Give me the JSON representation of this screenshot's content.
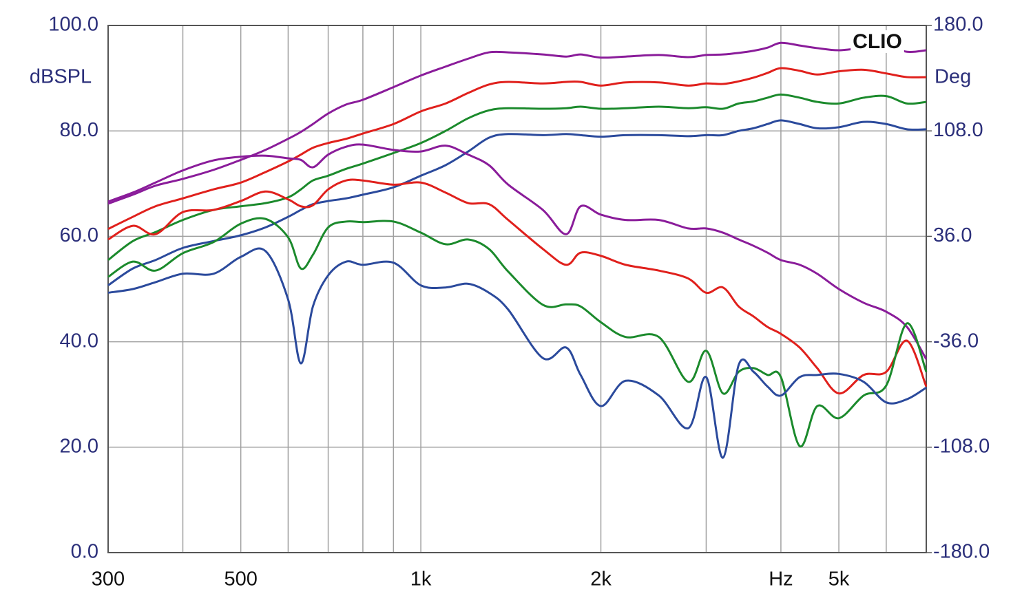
{
  "chart_data": {
    "type": "line",
    "ylabel": "dBSPL",
    "y2label": "Deg",
    "annotation": "CLIO",
    "xscale": "log",
    "grid": true,
    "xlim": [
      300,
      7000
    ],
    "ylim": [
      0,
      100
    ],
    "y2lim": [
      -180,
      180
    ],
    "xticks": [
      300,
      500,
      {
        "value": 1000,
        "label": "1k"
      },
      {
        "value": 2000,
        "label": "2k"
      },
      {
        "value": 4000,
        "label": "Hz"
      },
      {
        "value": 5000,
        "label": "5k"
      }
    ],
    "xminorticks": [
      400,
      600,
      700,
      800,
      900,
      3000,
      6000,
      7000
    ],
    "yticks": [
      {
        "value": 0,
        "label": "0.0"
      },
      {
        "value": 20,
        "label": "20.0"
      },
      {
        "value": 40,
        "label": "40.0"
      },
      {
        "value": 60,
        "label": "60.0"
      },
      {
        "value": 80,
        "label": "80.0"
      },
      {
        "value": 100,
        "label": "100.0"
      }
    ],
    "y2ticks": [
      {
        "value": -180,
        "label": "-180.0"
      },
      {
        "value": -108,
        "label": "-108.0"
      },
      {
        "value": -36,
        "label": "-36.0"
      },
      {
        "value": 36,
        "label": "36.0"
      },
      {
        "value": 108,
        "label": "108.0"
      },
      {
        "value": 180,
        "label": "180.0"
      }
    ],
    "x": [
      300,
      330,
      360,
      400,
      450,
      500,
      550,
      600,
      630,
      660,
      700,
      750,
      800,
      900,
      1000,
      1100,
      1200,
      1300,
      1400,
      1600,
      1750,
      1850,
      2000,
      2200,
      2500,
      2800,
      3000,
      3200,
      3400,
      3600,
      3800,
      4000,
      4300,
      4600,
      5000,
      5500,
      6000,
      6500,
      7000
    ],
    "series": [
      {
        "color": "#8a1c9a",
        "values": [
          66.2,
          67.9,
          69.6,
          70.9,
          72.6,
          74.5,
          76.4,
          78.5,
          79.8,
          81.3,
          83.3,
          85.0,
          85.9,
          88.3,
          90.5,
          92.2,
          93.7,
          94.9,
          94.9,
          94.5,
          94.1,
          94.5,
          93.9,
          94.1,
          94.4,
          94.0,
          94.4,
          94.5,
          94.8,
          95.2,
          95.8,
          96.7,
          96.2,
          95.7,
          95.3,
          95.8,
          96.2,
          95.0,
          95.3
        ]
      },
      {
        "color": "#e0201c",
        "values": [
          61.4,
          63.7,
          65.7,
          67.2,
          68.9,
          70.2,
          72.2,
          74.2,
          75.5,
          76.8,
          77.7,
          78.5,
          79.5,
          81.3,
          83.7,
          85.2,
          87.2,
          88.8,
          89.3,
          89.0,
          89.3,
          89.3,
          88.6,
          89.2,
          89.2,
          88.6,
          89.0,
          88.9,
          89.4,
          90.1,
          91.0,
          91.9,
          91.4,
          90.7,
          91.3,
          91.6,
          90.9,
          90.2,
          90.2
        ]
      },
      {
        "color": "#1b8a2c",
        "values": [
          55.5,
          59.1,
          60.8,
          63.1,
          65.0,
          65.7,
          66.3,
          67.4,
          68.9,
          70.6,
          71.5,
          72.8,
          73.8,
          75.8,
          77.7,
          80.0,
          82.4,
          83.9,
          84.3,
          84.2,
          84.3,
          84.6,
          84.2,
          84.3,
          84.6,
          84.3,
          84.5,
          84.2,
          85.2,
          85.6,
          86.3,
          86.9,
          86.3,
          85.5,
          85.2,
          86.3,
          86.6,
          85.2,
          85.5
        ]
      },
      {
        "color": "#2b4a9c",
        "values": [
          50.7,
          53.9,
          55.5,
          57.8,
          59.1,
          60.2,
          61.7,
          63.7,
          65.0,
          66.1,
          66.7,
          67.2,
          67.9,
          69.3,
          71.5,
          73.5,
          76.1,
          78.7,
          79.4,
          79.2,
          79.4,
          79.2,
          78.9,
          79.2,
          79.2,
          79.0,
          79.2,
          79.2,
          80.0,
          80.5,
          81.3,
          82.0,
          81.3,
          80.5,
          80.7,
          81.7,
          81.3,
          80.3,
          80.3
        ]
      },
      {
        "color": "#8a1c9a",
        "values": [
          66.6,
          68.3,
          70.2,
          72.5,
          74.4,
          75.1,
          75.3,
          74.8,
          74.5,
          73.1,
          75.5,
          77.0,
          77.4,
          76.4,
          76.1,
          77.2,
          75.5,
          73.5,
          69.8,
          65.0,
          60.4,
          65.7,
          64.1,
          63.1,
          63.1,
          61.5,
          61.5,
          60.7,
          59.4,
          58.2,
          56.9,
          55.5,
          54.6,
          52.9,
          50.0,
          47.4,
          45.7,
          42.8,
          36.7
        ]
      },
      {
        "color": "#e0201c",
        "values": [
          59.4,
          62.0,
          60.4,
          64.6,
          65.0,
          66.7,
          68.5,
          67.0,
          65.7,
          65.9,
          68.9,
          70.6,
          70.6,
          69.8,
          70.2,
          68.3,
          66.3,
          66.1,
          63.1,
          57.6,
          54.6,
          56.9,
          56.3,
          54.6,
          53.5,
          52.0,
          49.3,
          50.3,
          46.7,
          44.8,
          42.8,
          41.5,
          38.9,
          35.0,
          30.2,
          33.7,
          34.3,
          40.2,
          31.5
        ]
      },
      {
        "color": "#1b8a2c",
        "values": [
          52.3,
          55.2,
          53.5,
          56.8,
          58.9,
          62.4,
          63.3,
          59.8,
          53.9,
          56.5,
          61.7,
          62.8,
          62.7,
          62.8,
          60.7,
          58.5,
          59.4,
          57.6,
          53.3,
          47.0,
          47.1,
          46.7,
          43.7,
          40.9,
          40.9,
          32.4,
          38.3,
          30.2,
          34.3,
          35.0,
          33.7,
          33.3,
          20.2,
          27.8,
          25.5,
          29.8,
          31.7,
          43.5,
          34.3
        ]
      },
      {
        "color": "#2b4a9c",
        "values": [
          49.3,
          50.0,
          51.3,
          52.9,
          52.9,
          56.1,
          57.2,
          48.0,
          35.9,
          46.7,
          52.6,
          55.2,
          54.6,
          55.0,
          50.7,
          50.3,
          51.0,
          49.3,
          46.1,
          36.9,
          38.9,
          33.7,
          27.8,
          32.6,
          29.8,
          23.6,
          33.3,
          18.0,
          35.6,
          34.3,
          31.5,
          29.8,
          33.3,
          33.7,
          33.9,
          32.4,
          28.5,
          29.1,
          31.3
        ]
      }
    ]
  }
}
